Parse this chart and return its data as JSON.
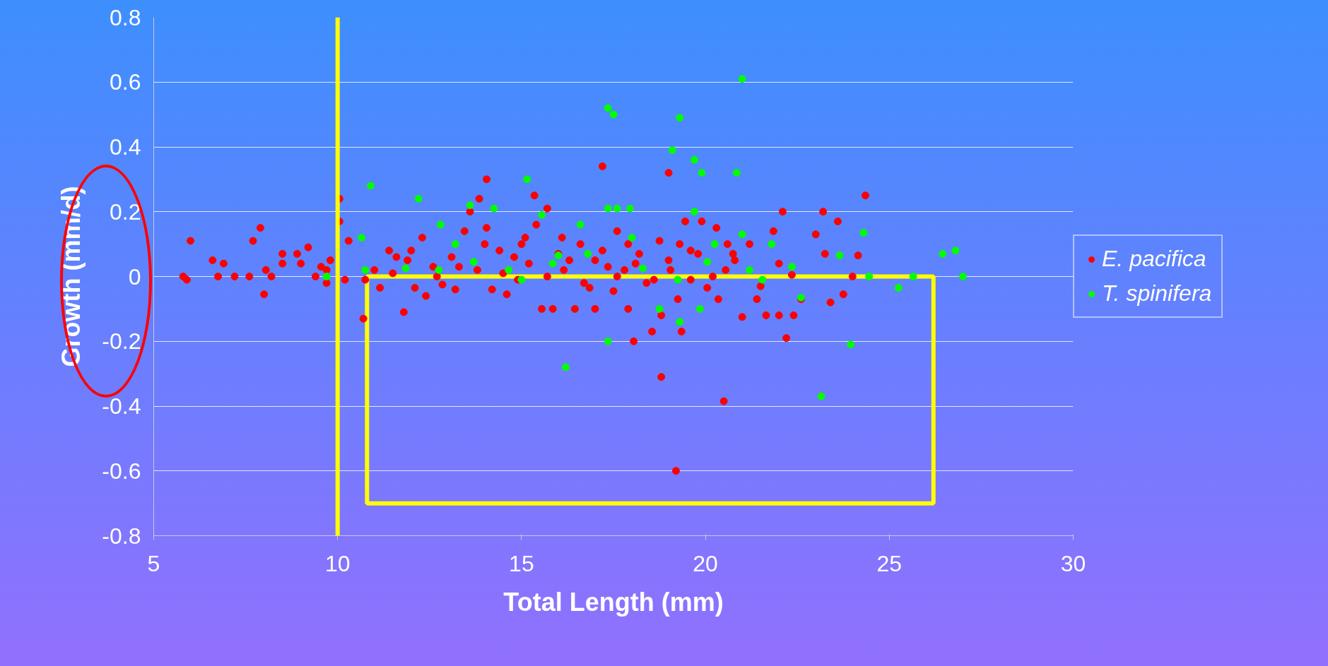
{
  "chart_data": {
    "type": "scatter",
    "xlabel": "Total Length (mm)",
    "ylabel": "Growth (mm/d)",
    "xlim": [
      5,
      30
    ],
    "xticks": [
      5,
      10,
      15,
      20,
      25,
      30
    ],
    "ylim": [
      -0.8,
      0.8
    ],
    "yticks": [
      -0.8,
      -0.6,
      -0.4,
      -0.2,
      0,
      0.2,
      0.4,
      0.6,
      0.8
    ],
    "grid": "y",
    "legend": "right",
    "marker": "circle",
    "ref_lines": [
      {
        "axis": "x",
        "value": 10,
        "color": "#ffff00"
      }
    ],
    "series": [
      {
        "name": "E. pacifica",
        "color": "#ff0000",
        "x": [
          5.8,
          5.9,
          6.0,
          6.6,
          6.75,
          6.9,
          7.2,
          7.6,
          7.7,
          7.9,
          8.0,
          8.05,
          8.2,
          8.5,
          8.5,
          8.9,
          9.0,
          9.2,
          9.4,
          9.55,
          9.7,
          9.7,
          9.8,
          10.05,
          10.05,
          10.3,
          10.2,
          10.7,
          10.75,
          11.0,
          11.15,
          11.4,
          11.5,
          11.6,
          11.8,
          12.0,
          12.1,
          12.3,
          12.4,
          12.6,
          12.85,
          13.1,
          13.2,
          13.45,
          13.6,
          13.8,
          13.85,
          14.05,
          14.05,
          14.4,
          14.6,
          14.8,
          14.9,
          15.1,
          15.35,
          15.4,
          15.55,
          15.7,
          15.85,
          16.0,
          16.15,
          16.45,
          16.6,
          16.85,
          17.0,
          17.2,
          17.2,
          17.35,
          17.5,
          17.6,
          17.8,
          17.9,
          18.05,
          18.2,
          18.4,
          18.55,
          18.75,
          18.8,
          18.8,
          19.0,
          19.05,
          19.2,
          19.25,
          19.35,
          19.45,
          19.6,
          19.8,
          19.9,
          20.05,
          20.3,
          20.35,
          20.5,
          20.55,
          20.75,
          21.0,
          21.2,
          22.1,
          21.4,
          21.65,
          21.85,
          22.0,
          22.2,
          22.35,
          22.4,
          22.6,
          23.0,
          23.2,
          23.25,
          23.4,
          23.6,
          23.75,
          24.15,
          24.35,
          24.0,
          11.9,
          12.7,
          13.3,
          14.2,
          14.5,
          15.2,
          15.7,
          16.3,
          16.7,
          17.0,
          17.6,
          18.1,
          18.6,
          19.0,
          19.6,
          20.2,
          20.8,
          21.5,
          22.0,
          14.0,
          15.0,
          16.1,
          17.9,
          19.3,
          20.6
        ],
        "values": [
          0,
          -0.01,
          0.11,
          0.05,
          0,
          0.04,
          0,
          0,
          0.11,
          0.15,
          -0.055,
          0.02,
          0,
          0.04,
          0.07,
          0.07,
          0.04,
          0.09,
          0,
          0.03,
          0.02,
          -0.02,
          0.05,
          0.24,
          0.17,
          0.11,
          -0.01,
          -0.13,
          -0.01,
          0.02,
          -0.035,
          0.08,
          0.01,
          0.06,
          -0.11,
          0.08,
          -0.035,
          0.12,
          -0.06,
          0.03,
          -0.025,
          0.06,
          -0.04,
          0.14,
          0.2,
          0.02,
          0.24,
          0.3,
          0.15,
          0.08,
          -0.055,
          0.06,
          -0.01,
          0.12,
          0.25,
          0.16,
          -0.1,
          0.21,
          -0.1,
          0.07,
          0.02,
          -0.1,
          0.1,
          -0.035,
          -0.1,
          0.34,
          0.08,
          0.03,
          -0.045,
          0.14,
          0.02,
          -0.1,
          -0.2,
          0.07,
          -0.02,
          -0.17,
          0.11,
          -0.12,
          -0.31,
          0.32,
          0.02,
          -0.6,
          -0.07,
          -0.17,
          0.17,
          -0.01,
          0.07,
          0.17,
          -0.035,
          0.15,
          -0.07,
          -0.385,
          0.02,
          0.07,
          -0.125,
          0.1,
          0.2,
          -0.07,
          -0.12,
          0.14,
          -0.12,
          -0.19,
          0.005,
          -0.12,
          -0.07,
          0.13,
          0.2,
          0.07,
          -0.08,
          0.17,
          -0.055,
          0.065,
          0.25,
          0,
          0.05,
          0,
          0.03,
          -0.04,
          0.01,
          0.04,
          0,
          0.05,
          -0.02,
          0.05,
          0,
          0.04,
          -0.01,
          0.05,
          0.08,
          0,
          0.05,
          -0.03,
          0.04,
          0.1,
          0.1,
          0.12,
          0.1,
          0.1,
          0.1
        ]
      },
      {
        "name": "T. spinifera",
        "color": "#00ff00",
        "x": [
          9.7,
          10.65,
          10.9,
          10.75,
          12.2,
          12.8,
          13.2,
          13.6,
          14.25,
          15.15,
          15.55,
          16.0,
          16.2,
          16.6,
          17.35,
          17.5,
          17.35,
          17.6,
          17.35,
          17.95,
          18.0,
          18.75,
          19.1,
          19.3,
          19.3,
          19.7,
          19.9,
          19.7,
          19.85,
          20.25,
          20.85,
          21.0,
          21.0,
          21.55,
          21.8,
          22.35,
          22.6,
          23.15,
          23.65,
          23.95,
          24.3,
          24.45,
          25.25,
          25.65,
          26.45,
          26.8,
          27.0,
          14.65,
          15.0,
          15.85,
          16.8,
          18.3,
          19.25,
          20.05,
          21.2,
          12.75,
          13.7,
          11.85
        ],
        "values": [
          0,
          0.12,
          0.28,
          0.02,
          0.24,
          0.16,
          0.1,
          0.22,
          0.21,
          0.3,
          0.19,
          0.065,
          -0.28,
          0.16,
          0.52,
          0.5,
          0.21,
          0.21,
          -0.2,
          0.21,
          0.12,
          -0.1,
          0.39,
          0.49,
          -0.14,
          0.36,
          0.32,
          0.2,
          -0.1,
          0.1,
          0.32,
          0.61,
          0.13,
          -0.01,
          0.1,
          0.03,
          -0.065,
          -0.37,
          0.065,
          -0.21,
          0.135,
          0,
          -0.035,
          0,
          0.07,
          0.08,
          0,
          0.02,
          -0.01,
          0.04,
          0.07,
          0.025,
          -0.01,
          0.045,
          0.02,
          0.02,
          0.045,
          0.025
        ]
      }
    ]
  }
}
